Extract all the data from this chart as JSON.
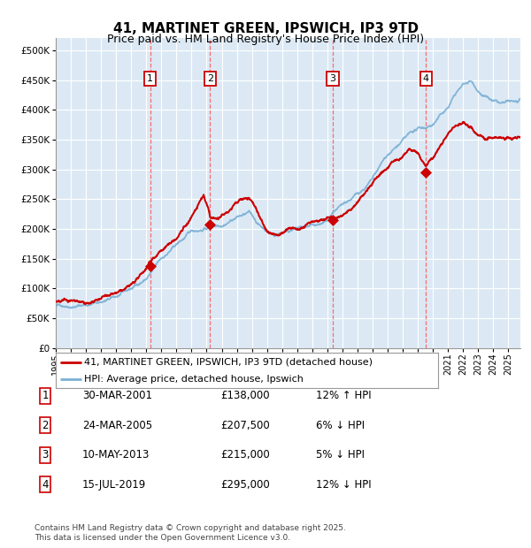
{
  "title": "41, MARTINET GREEN, IPSWICH, IP3 9TD",
  "subtitle": "Price paid vs. HM Land Registry's House Price Index (HPI)",
  "title_fontsize": 11,
  "subtitle_fontsize": 9,
  "background_color": "#ffffff",
  "plot_bg_color": "#dce9f5",
  "grid_color": "#ffffff",
  "ylim": [
    0,
    520000
  ],
  "yticks": [
    0,
    50000,
    100000,
    150000,
    200000,
    250000,
    300000,
    350000,
    400000,
    450000,
    500000
  ],
  "ytick_labels": [
    "£0",
    "£50K",
    "£100K",
    "£150K",
    "£200K",
    "£250K",
    "£300K",
    "£350K",
    "£400K",
    "£450K",
    "£500K"
  ],
  "hpi_color": "#7ab0d4",
  "price_color": "#cc0000",
  "marker_color": "#cc0000",
  "vline_color": "#ff5555",
  "purchases": [
    {
      "date_num": 2001.25,
      "price": 138000,
      "label": "1"
    },
    {
      "date_num": 2005.23,
      "price": 207500,
      "label": "2"
    },
    {
      "date_num": 2013.36,
      "price": 215000,
      "label": "3"
    },
    {
      "date_num": 2019.54,
      "price": 295000,
      "label": "4"
    }
  ],
  "legend_entries": [
    {
      "label": "41, MARTINET GREEN, IPSWICH, IP3 9TD (detached house)",
      "color": "#cc0000"
    },
    {
      "label": "HPI: Average price, detached house, Ipswich",
      "color": "#7ab0d4"
    }
  ],
  "table_rows": [
    {
      "num": "1",
      "date": "30-MAR-2001",
      "price": "£138,000",
      "hpi": "12% ↑ HPI"
    },
    {
      "num": "2",
      "date": "24-MAR-2005",
      "price": "£207,500",
      "hpi": "6% ↓ HPI"
    },
    {
      "num": "3",
      "date": "10-MAY-2013",
      "price": "£215,000",
      "hpi": "5% ↓ HPI"
    },
    {
      "num": "4",
      "date": "15-JUL-2019",
      "price": "£295,000",
      "hpi": "12% ↓ HPI"
    }
  ],
  "footer": "Contains HM Land Registry data © Crown copyright and database right 2025.\nThis data is licensed under the Open Government Licence v3.0.",
  "xmin": 1995.0,
  "xmax": 2025.8
}
